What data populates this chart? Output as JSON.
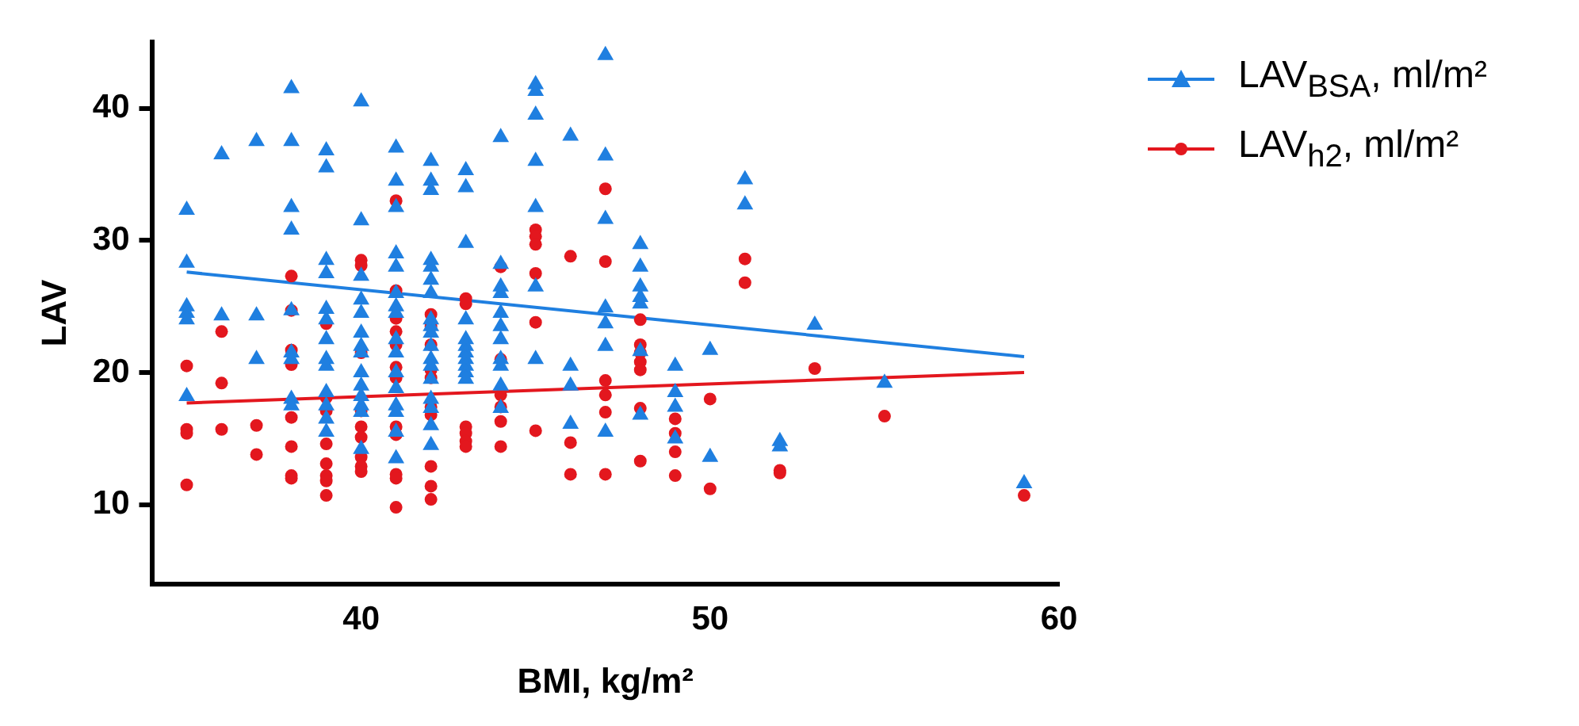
{
  "chart_data": {
    "type": "scatter",
    "xlabel": "BMI, kg/m²",
    "ylabel": "LAV",
    "xlim": [
      34,
      60
    ],
    "xticks": [
      40,
      50,
      60
    ],
    "ylim": [
      4,
      45
    ],
    "yticks": [
      10,
      20,
      30,
      40
    ],
    "grid": false,
    "legend": "top right",
    "series": [
      {
        "name": "LAV$_{BSA}$, ml/m²",
        "color": "#1f7fe0",
        "marker": "triangle",
        "x": [
          35,
          35,
          35,
          35,
          35,
          35,
          36,
          36,
          37,
          37,
          37,
          38,
          38,
          38,
          38,
          38,
          38,
          38,
          38,
          38,
          39,
          39,
          39,
          39,
          39,
          39,
          39,
          39,
          39,
          39,
          39,
          39,
          39,
          40,
          40,
          40,
          40,
          40,
          40,
          40,
          40,
          40,
          40,
          40,
          40,
          40,
          40,
          41,
          41,
          41,
          41,
          41,
          41,
          41,
          41,
          41,
          41,
          41,
          41,
          41,
          41,
          41,
          41,
          42,
          42,
          42,
          42,
          42,
          42,
          42,
          42,
          42,
          42,
          42,
          42,
          42,
          42,
          42,
          42,
          42,
          42,
          43,
          43,
          43,
          43,
          43,
          43,
          43,
          43,
          43,
          43,
          43,
          44,
          44,
          44,
          44,
          44,
          44,
          44,
          44,
          44,
          44,
          44,
          45,
          45,
          45,
          45,
          45,
          45,
          45,
          46,
          46,
          46,
          46,
          47,
          47,
          47,
          47,
          47,
          47,
          47,
          48,
          48,
          48,
          48,
          48,
          48,
          48,
          49,
          49,
          49,
          49,
          50,
          50,
          51,
          51,
          52,
          52,
          53,
          55,
          59
        ],
        "values": [
          32.3,
          28.3,
          25,
          24.5,
          24,
          18.2,
          36.5,
          24.3,
          37.5,
          24.3,
          21,
          41.5,
          37.5,
          32.5,
          30.8,
          24.7,
          21.5,
          21,
          18,
          17.5,
          36.8,
          35.5,
          28.5,
          27.5,
          24.8,
          24,
          22.5,
          21,
          20.5,
          18.5,
          17.5,
          16.5,
          15.5,
          40.5,
          31.5,
          27.3,
          25.5,
          24.5,
          23,
          22,
          21.5,
          20,
          19,
          18.2,
          17.5,
          17,
          14.2,
          37,
          34.5,
          32.5,
          29,
          28,
          26,
          25,
          24.5,
          22.5,
          21.5,
          20,
          18.8,
          17.5,
          17,
          15.5,
          13.5,
          36,
          34.5,
          33.8,
          28.5,
          28,
          27,
          26,
          24,
          23.5,
          23,
          22,
          21,
          20.5,
          19.5,
          18,
          17.3,
          16,
          14.5,
          35.3,
          34,
          29.8,
          24,
          22.5,
          22,
          21.5,
          21,
          20.5,
          20,
          19.5,
          37.8,
          28.2,
          26.5,
          26,
          24.5,
          23.5,
          22.5,
          21,
          20.5,
          19,
          17.3,
          41.8,
          41.3,
          39.5,
          36,
          32.5,
          26.5,
          21,
          37.9,
          20.5,
          19,
          16.1,
          44,
          36.4,
          31.6,
          24.9,
          23.7,
          22,
          15.5,
          29.7,
          28,
          26.5,
          25.7,
          25.2,
          21.6,
          16.8,
          20.5,
          18.5,
          17.4,
          15,
          21.7,
          13.6,
          34.6,
          32.7,
          14.8,
          14.4,
          23.6,
          19.2,
          11.6
        ]
      },
      {
        "name": "LAV$_{h2}$, ml/m²",
        "color": "#e3171e",
        "marker": "circle",
        "x": [
          35,
          35,
          35,
          35,
          36,
          36,
          36,
          37,
          37,
          38,
          38,
          38,
          38,
          38,
          38,
          38,
          38,
          39,
          39,
          39,
          39,
          39,
          39,
          39,
          39,
          40,
          40,
          40,
          40,
          40,
          40,
          40,
          40,
          40,
          41,
          41,
          41,
          41,
          41,
          41,
          41,
          41,
          41,
          41,
          41,
          41,
          42,
          42,
          42,
          42,
          42,
          42,
          42,
          42,
          42,
          42,
          43,
          43,
          43,
          43,
          43,
          43,
          44,
          44,
          44,
          44,
          44,
          44,
          45,
          45,
          45,
          45,
          45,
          45,
          46,
          46,
          46,
          47,
          47,
          47,
          47,
          47,
          47,
          48,
          48,
          48,
          48,
          48,
          48,
          48,
          49,
          49,
          49,
          49,
          50,
          50,
          51,
          51,
          52,
          52,
          53,
          55,
          59
        ],
        "values": [
          20.5,
          15.7,
          15.4,
          11.5,
          23.1,
          19.2,
          15.7,
          16,
          13.8,
          27.3,
          24.7,
          21.7,
          20.6,
          16.6,
          14.4,
          12.2,
          12,
          23.7,
          18.1,
          17.1,
          14.6,
          13.1,
          12.2,
          11.8,
          10.7,
          28.5,
          28.1,
          21.5,
          17.1,
          15.9,
          15.1,
          13.6,
          12.9,
          12.5,
          33,
          26.2,
          24.1,
          23.1,
          22.1,
          20.4,
          19.6,
          15.9,
          15.3,
          12.3,
          12,
          9.8,
          24.4,
          23.5,
          22.1,
          20.2,
          19.6,
          17.4,
          16.8,
          12.9,
          11.4,
          10.4,
          25.6,
          25.2,
          15.9,
          15.4,
          14.8,
          14.4,
          28,
          21,
          18.3,
          17.4,
          16.3,
          14.4,
          30.8,
          30.3,
          29.7,
          27.5,
          23.8,
          15.6,
          28.8,
          14.7,
          12.3,
          33.9,
          28.4,
          19.4,
          18.3,
          17,
          12.3,
          24,
          22.1,
          21.5,
          20.8,
          20.2,
          17.3,
          13.3,
          16.5,
          15.4,
          14,
          12.2,
          18,
          11.2,
          28.6,
          26.8,
          12.6,
          12.4,
          20.3,
          16.7,
          10.7
        ]
      },
      {
        "type": "line",
        "color": "#1f7fe0",
        "marker": "none",
        "x": [
          35,
          59
        ],
        "values": [
          27.6,
          21.2
        ]
      },
      {
        "type": "line",
        "color": "#e3171e",
        "marker": "none",
        "x": [
          35,
          59
        ],
        "values": [
          17.7,
          20
        ]
      }
    ]
  }
}
